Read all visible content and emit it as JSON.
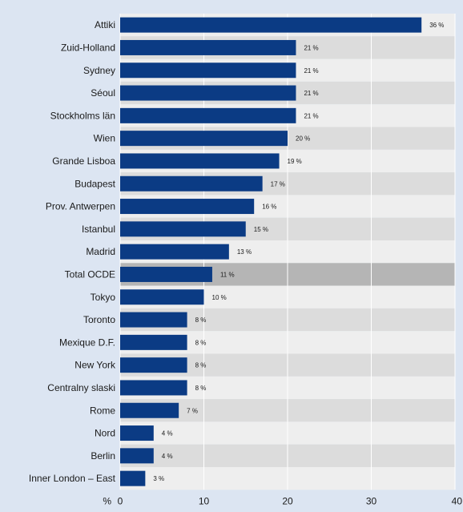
{
  "colors": {
    "background": "#dce5f2",
    "bar": "#0b3b84",
    "band_light": "#eeeeee",
    "band_dark": "#dcdcdc",
    "highlight_band": "#b5b5b5",
    "grid": "#ffffff"
  },
  "chart_data": {
    "type": "bar",
    "orientation": "horizontal",
    "categories": [
      "Attiki",
      "Zuid-Holland",
      "Sydney",
      "Séoul",
      "Stockholms län",
      "Wien",
      "Grande Lisboa",
      "Budapest",
      "Prov. Antwerpen",
      "Istanbul",
      "Madrid",
      "Total OCDE",
      "Tokyo",
      "Toronto",
      "Mexique D.F.",
      "New York",
      "Centralny slaski",
      "Rome",
      "Nord",
      "Berlin",
      "Inner London – East"
    ],
    "values": [
      36,
      21,
      21,
      21,
      21,
      20,
      19,
      17,
      16,
      15,
      13,
      11,
      10,
      8,
      8,
      8,
      8,
      7,
      4,
      4,
      3
    ],
    "value_labels": [
      "36 %",
      "21 %",
      "21 %",
      "21 %",
      "21 %",
      "20 %",
      "19 %",
      "17 %",
      "16 %",
      "15 %",
      "13 %",
      "11 %",
      "10 %",
      "8 %",
      "8 %",
      "8 %",
      "8 %",
      "7 %",
      "4 %",
      "4 %",
      "3 %"
    ],
    "highlighted_category": "Total OCDE",
    "xlim": [
      0,
      40
    ],
    "x_ticks": [
      0,
      10,
      20,
      30,
      40
    ],
    "x_tick_labels": [
      "0",
      "10",
      "20",
      "30",
      "40"
    ],
    "x_unit_label": "%",
    "grid": true,
    "title": "",
    "xlabel": "",
    "ylabel": ""
  }
}
